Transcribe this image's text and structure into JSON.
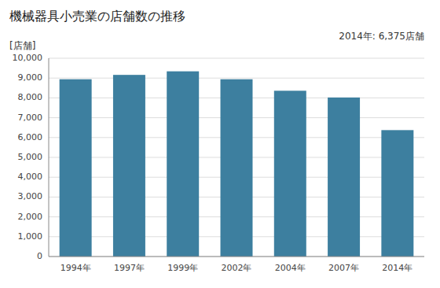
{
  "chart_data": {
    "type": "bar",
    "title": "機械器具小売業の店舗数の推移",
    "ylabel": "[店舗]",
    "annotation": "2014年: 6,375店舗",
    "categories": [
      "1994年",
      "1997年",
      "1999年",
      "2002年",
      "2004年",
      "2007年",
      "2014年"
    ],
    "values": [
      8940,
      9160,
      9340,
      8940,
      8360,
      8020,
      6375
    ],
    "color": "#3d7f9f",
    "ylim": [
      0,
      10000
    ],
    "yticks": [
      0,
      {
        "value": 1000,
        "label": "1,000"
      },
      {
        "value": 2000,
        "label": "2,000"
      },
      {
        "value": 3000,
        "label": "3,000"
      },
      {
        "value": 4000,
        "label": "4,000"
      },
      {
        "value": 5000,
        "label": "5,000"
      },
      {
        "value": 6000,
        "label": "6,000"
      },
      {
        "value": 7000,
        "label": "7,000"
      },
      {
        "value": 8000,
        "label": "8,000"
      },
      {
        "value": 9000,
        "label": "9,000"
      },
      {
        "value": 10000,
        "label": "10,000"
      }
    ],
    "grid": true
  }
}
